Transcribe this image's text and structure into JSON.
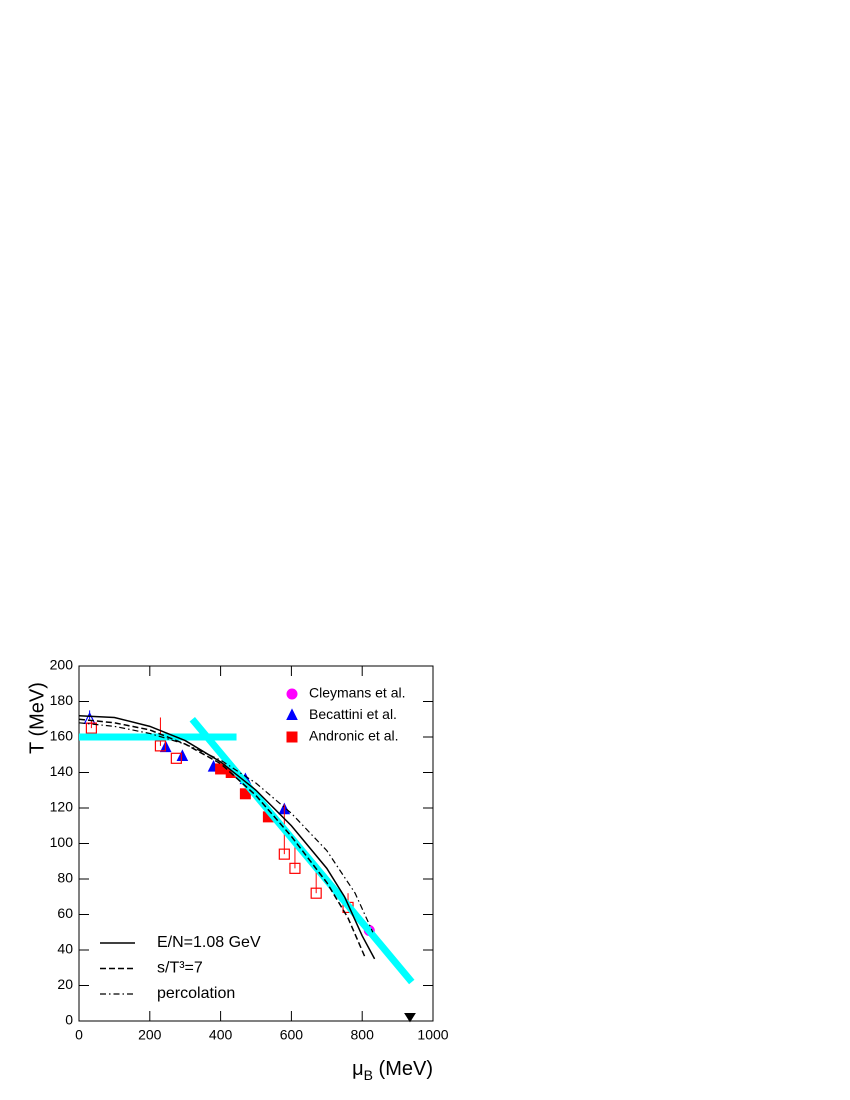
{
  "chart_data": {
    "type": "scatter",
    "x_label": [
      "μ",
      "B",
      " (MeV)"
    ],
    "y_label": "T (MeV)",
    "xlim": [
      0,
      1000
    ],
    "xticks": [
      0,
      200,
      400,
      600,
      800,
      1000
    ],
    "ylim": [
      0,
      200
    ],
    "yticks": [
      0,
      20,
      40,
      60,
      80,
      100,
      120,
      140,
      160,
      180,
      200
    ],
    "legend": {
      "markers": "upper right",
      "lines": "lower left"
    },
    "series": [
      {
        "name": "Cleymans et al.",
        "kind": "marker",
        "marker": "circle",
        "filled": true,
        "color": "#ff00ff",
        "x": [
          820
        ],
        "values": [
          51
        ]
      },
      {
        "name": "Becattini et al.",
        "kind": "marker",
        "marker": "triangle",
        "filled": true,
        "color": "#0000ff",
        "x": [
          245,
          292,
          380,
          470,
          580
        ],
        "values": [
          154,
          149,
          143,
          136,
          119
        ]
      },
      {
        "name": "Andronic et al.",
        "kind": "marker",
        "marker": "square",
        "filled": true,
        "color": "#ff0000",
        "x": [
          400,
          430,
          470,
          535
        ],
        "values": [
          142,
          140,
          128,
          115
        ]
      },
      {
        "kind": "marker",
        "marker": "triangle",
        "filled": false,
        "color": "#0000ff",
        "x": [
          30
        ],
        "values": [
          170
        ],
        "errors_up": [
          5
        ]
      },
      {
        "kind": "marker",
        "marker": "square",
        "filled": false,
        "color": "#ff0000",
        "x": [
          35,
          230,
          275,
          580,
          610,
          670,
          760
        ],
        "values": [
          165,
          155,
          148,
          94,
          86,
          72,
          64
        ],
        "errors_up": [
          4,
          16,
          0,
          28,
          12,
          13,
          8
        ]
      },
      {
        "kind": "marker",
        "marker": "triangle-down",
        "filled": true,
        "color": "#000000",
        "x": [
          935
        ],
        "values": [
          2
        ]
      },
      {
        "kind": "line",
        "width": 7,
        "dash": "solid",
        "color": "#00ffff",
        "x": [
          0,
          445
        ],
        "values": [
          160,
          160
        ]
      },
      {
        "kind": "line",
        "width": 7,
        "dash": "solid",
        "color": "#00ffff",
        "x": [
          320,
          940
        ],
        "values": [
          170,
          22
        ]
      },
      {
        "name": "E/N=1.08 GeV",
        "kind": "line",
        "width": 1.5,
        "dash": "solid",
        "color": "#000000",
        "x": [
          0,
          100,
          200,
          300,
          400,
          500,
          600,
          700,
          750,
          800,
          835
        ],
        "values": [
          172,
          171,
          166,
          158,
          146,
          130,
          110,
          86,
          70,
          48,
          35
        ]
      },
      {
        "name": "s/T³=7",
        "kind": "line",
        "width": 1.5,
        "dash": "dashed",
        "color": "#000000",
        "x": [
          0,
          100,
          200,
          300,
          400,
          500,
          600,
          700,
          760,
          810
        ],
        "values": [
          170,
          168,
          164,
          156,
          145,
          127,
          104,
          78,
          58,
          35
        ]
      },
      {
        "name": "percolation",
        "kind": "line",
        "width": 1.2,
        "dash": "dashdot",
        "color": "#000000",
        "x": [
          0,
          100,
          200,
          300,
          400,
          500,
          600,
          700,
          780,
          830
        ],
        "values": [
          168,
          166,
          162,
          156,
          147,
          134,
          117,
          96,
          72,
          50
        ]
      }
    ]
  }
}
